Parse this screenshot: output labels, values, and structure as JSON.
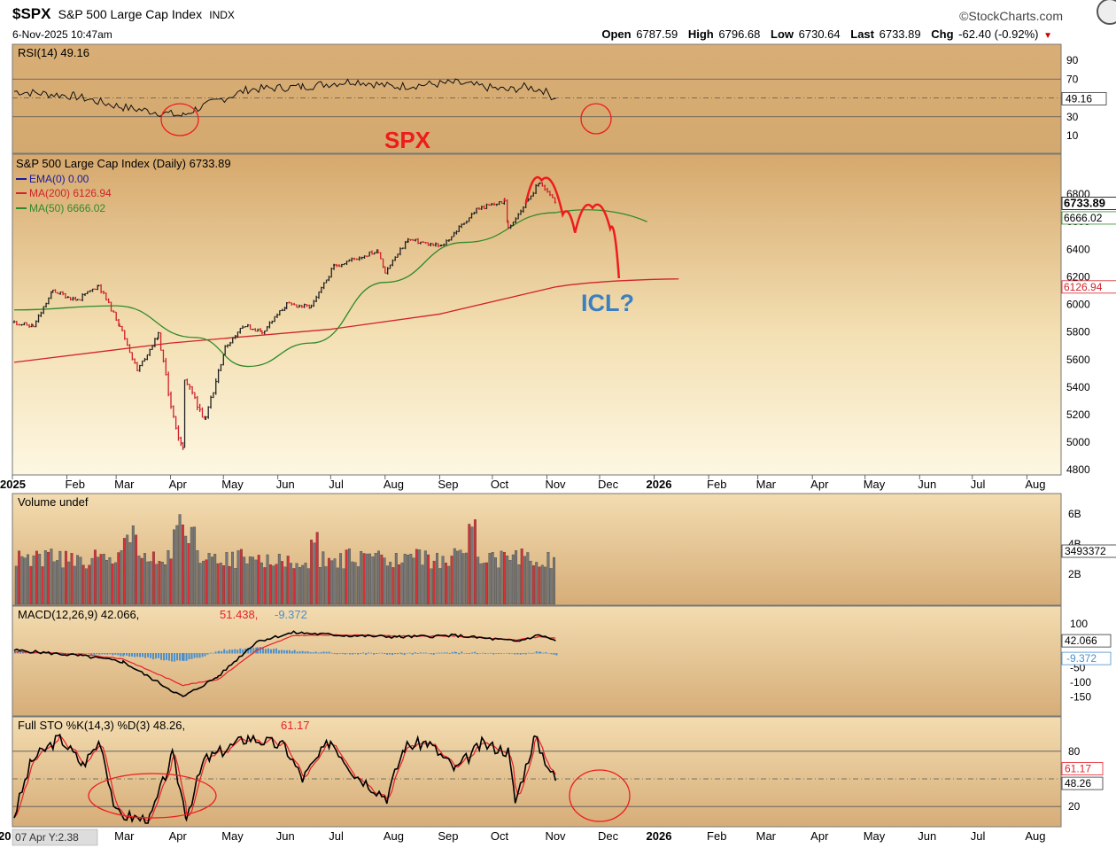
{
  "header": {
    "symbol": "$SPX",
    "name": "S&P 500 Large Cap Index",
    "exchange": "INDX",
    "brand": "©StockCharts.com",
    "datetime": "6-Nov-2025 10:47am",
    "quote": {
      "open_label": "Open",
      "open": "6787.59",
      "high_label": "High",
      "high": "6796.68",
      "low_label": "Low",
      "low": "6730.64",
      "last_label": "Last",
      "last": "6733.89",
      "chg_label": "Chg",
      "chg": "-62.40 (-0.92%)"
    }
  },
  "annotations": {
    "spx_label": "SPX",
    "icl_label": "ICL?",
    "cursor_readout": "07 Apr Y:2.38"
  },
  "colors": {
    "panel_bg": "#d9b27e",
    "price_bg_top": "#d7aa6f",
    "price_bg_bottom": "#fdf6dd",
    "annotation_red": "#ee1c1c",
    "annotation_blue": "#3a7fc1",
    "ma50": "#2f8a2a",
    "ma200": "#d2232a",
    "ema": "#1a1aa0",
    "macd_hist": "#4a8fcc",
    "up_bar": "#222222",
    "down_bar": "#d0202a"
  },
  "chart_data": [
    {
      "type": "line",
      "panel": "rsi",
      "label": "RSI(14) 49.16",
      "last_value_tag": "49.16",
      "ylim": [
        0,
        100
      ],
      "yticks": [
        "90",
        "70",
        "50",
        "30",
        "10"
      ],
      "reference_lines": [
        70,
        50,
        30
      ],
      "x": [
        "Jan",
        "Feb",
        "Mar",
        "Apr",
        "Apr",
        "May",
        "Jun",
        "Jul",
        "Aug",
        "Sep",
        "Oct",
        "Oct",
        "Nov",
        "Nov"
      ],
      "values": [
        57,
        52,
        40,
        31,
        38,
        59,
        62,
        68,
        62,
        66,
        58,
        62,
        58,
        49
      ]
    },
    {
      "type": "candlestick",
      "panel": "price",
      "title": "S&P 500 Large Cap Index (Daily) 6733.89",
      "legend": [
        {
          "name": "EMA(0) 0.00",
          "color": "#1a1aa0"
        },
        {
          "name": "MA(200) 6126.94",
          "color": "#d2232a"
        },
        {
          "name": "MA(50) 6666.02",
          "color": "#2f8a2a"
        }
      ],
      "last_value_tags": [
        "6733.89",
        "6666.02",
        "6126.94"
      ],
      "ylim": [
        4750,
        7000
      ],
      "yticks": [
        "6800",
        "6600",
        "6400",
        "6200",
        "6000",
        "5800",
        "5600",
        "5400",
        "5200",
        "5000",
        "4800"
      ],
      "x_labels": [
        "2025",
        "Feb",
        "Mar",
        "Apr",
        "May",
        "Jun",
        "Jul",
        "Aug",
        "Sep",
        "Oct",
        "Nov",
        "Dec",
        "2026",
        "Feb",
        "Mar",
        "Apr",
        "May",
        "Jun",
        "Jul",
        "Aug"
      ],
      "close_path": [
        [
          "2025-01-02",
          5870
        ],
        [
          "2025-01-13",
          5840
        ],
        [
          "2025-01-24",
          6100
        ],
        [
          "2025-02-07",
          6030
        ],
        [
          "2025-02-19",
          6140
        ],
        [
          "2025-03-03",
          5850
        ],
        [
          "2025-03-13",
          5520
        ],
        [
          "2025-03-25",
          5780
        ],
        [
          "2025-04-04",
          5075
        ],
        [
          "2025-04-08",
          4985
        ],
        [
          "2025-04-09",
          5460
        ],
        [
          "2025-04-21",
          5160
        ],
        [
          "2025-05-02",
          5690
        ],
        [
          "2025-05-12",
          5850
        ],
        [
          "2025-05-23",
          5800
        ],
        [
          "2025-06-06",
          6000
        ],
        [
          "2025-06-20",
          5980
        ],
        [
          "2025-07-03",
          6280
        ],
        [
          "2025-07-28",
          6390
        ],
        [
          "2025-08-01",
          6240
        ],
        [
          "2025-08-14",
          6470
        ],
        [
          "2025-09-02",
          6420
        ],
        [
          "2025-09-22",
          6690
        ],
        [
          "2025-10-08",
          6750
        ],
        [
          "2025-10-10",
          6550
        ],
        [
          "2025-10-28",
          6890
        ],
        [
          "2025-11-06",
          6734
        ]
      ],
      "ma50_path": [
        [
          "2025-01-02",
          5960
        ],
        [
          "2025-03-01",
          5990
        ],
        [
          "2025-04-15",
          5760
        ],
        [
          "2025-05-15",
          5550
        ],
        [
          "2025-06-20",
          5720
        ],
        [
          "2025-08-01",
          6160
        ],
        [
          "2025-09-15",
          6450
        ],
        [
          "2025-11-06",
          6666
        ]
      ],
      "ma200_path": [
        [
          "2025-01-02",
          5580
        ],
        [
          "2025-04-01",
          5720
        ],
        [
          "2025-07-01",
          5820
        ],
        [
          "2025-09-01",
          5930
        ],
        [
          "2025-11-06",
          6127
        ]
      ],
      "projection_path": [
        [
          "2025-10-20",
          6730
        ],
        [
          "2025-10-29",
          6900
        ],
        [
          "2025-11-10",
          6650
        ],
        [
          "2025-11-17",
          6520
        ],
        [
          "2025-11-27",
          6700
        ],
        [
          "2025-12-07",
          6550
        ],
        [
          "2025-12-12",
          6190
        ]
      ]
    },
    {
      "type": "bar",
      "panel": "volume",
      "label": "Volume undef",
      "last_value_tag": "3493372",
      "yticks": [
        "6B",
        "4B",
        "2B"
      ],
      "spike_months": [
        "Mar",
        "Apr",
        "Jun",
        "Sep"
      ]
    },
    {
      "type": "line",
      "panel": "macd",
      "label": "MACD(12,26,9) 42.066, 51.438, -9.372",
      "series": [
        {
          "name": "MACD 42.066",
          "color": "#000000",
          "values": [
            10,
            -10,
            -30,
            -150,
            -80,
            40,
            70,
            60,
            55,
            60,
            40,
            62,
            42
          ]
        },
        {
          "name": "Signal 51.438",
          "color": "#e8202a",
          "values": [
            5,
            -5,
            -20,
            -110,
            -90,
            10,
            60,
            62,
            58,
            58,
            45,
            55,
            51
          ]
        },
        {
          "name": "Histogram -9.372",
          "color": "#4a8fcc",
          "type": "bar"
        }
      ],
      "last_value_tags": [
        "42.066",
        "-9.372"
      ],
      "yticks": [
        "100",
        "50",
        "0",
        "-50",
        "-100",
        "-150"
      ]
    },
    {
      "type": "line",
      "panel": "stochastic",
      "label": "Full STO %K(14,3) %D(3) 48.26, 61.17",
      "series": [
        {
          "name": "%K 48.26",
          "color": "#000000"
        },
        {
          "name": "%D 61.17",
          "color": "#e8202a"
        }
      ],
      "last_value_tags": [
        "61.17",
        "48.26"
      ],
      "yticks": [
        "80",
        "50",
        "20"
      ],
      "reference_lines": [
        80,
        50,
        20
      ],
      "x_labels": [
        "20",
        "Mar",
        "Apr",
        "May",
        "Jun",
        "Jul",
        "Aug",
        "Sep",
        "Oct",
        "Nov",
        "Dec",
        "2026",
        "Feb",
        "Mar",
        "Apr",
        "May",
        "Jun",
        "Jul",
        "Aug"
      ]
    }
  ]
}
